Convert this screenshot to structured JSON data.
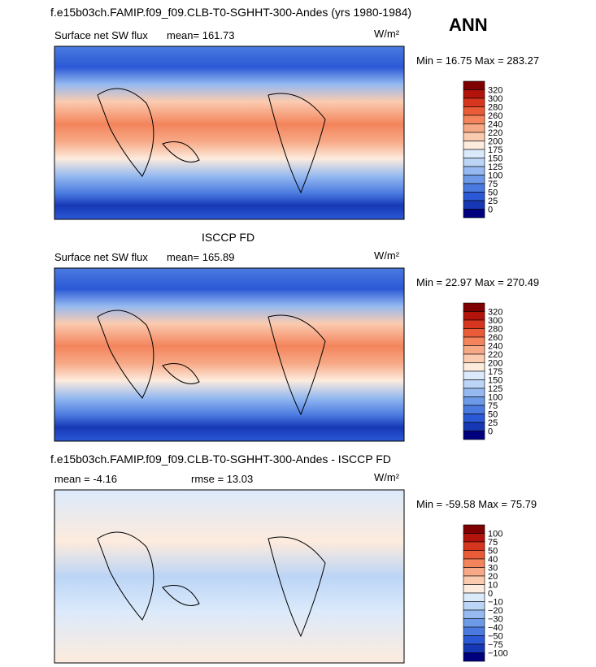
{
  "title": "f.e15b03ch.FAMIP.f09_f09.CLB-T0-SGHHT-300-Andes (yrs 1980-1984)",
  "season": "ANN",
  "panels": [
    {
      "title": null,
      "left": "Surface net SW flux",
      "center": "mean= 161.73",
      "units": "W/m²",
      "minmax": "Min =  16.75 Max = 283.27",
      "levels": [
        "320",
        "300",
        "280",
        "260",
        "240",
        "220",
        "200",
        "175",
        "150",
        "125",
        "100",
        "75",
        "50",
        "25",
        "0"
      ]
    },
    {
      "title": "ISCCP FD",
      "left": "Surface net SW flux",
      "center": "mean= 165.89",
      "units": "W/m²",
      "minmax": "Min =  22.97 Max = 270.49",
      "levels": [
        "320",
        "300",
        "280",
        "260",
        "240",
        "220",
        "200",
        "175",
        "150",
        "125",
        "100",
        "75",
        "50",
        "25",
        "0"
      ]
    },
    {
      "title": "f.e15b03ch.FAMIP.f09_f09.CLB-T0-SGHHT-300-Andes - ISCCP FD",
      "left": "mean =  -4.16",
      "center": "rmse =  13.03",
      "units": "W/m²",
      "minmax": "Min = -59.58 Max =  75.79",
      "levels": [
        "100",
        "75",
        "50",
        "40",
        "30",
        "20",
        "10",
        "0",
        "−10",
        "−20",
        "−30",
        "−40",
        "−50",
        "−75",
        "−100"
      ]
    }
  ]
}
